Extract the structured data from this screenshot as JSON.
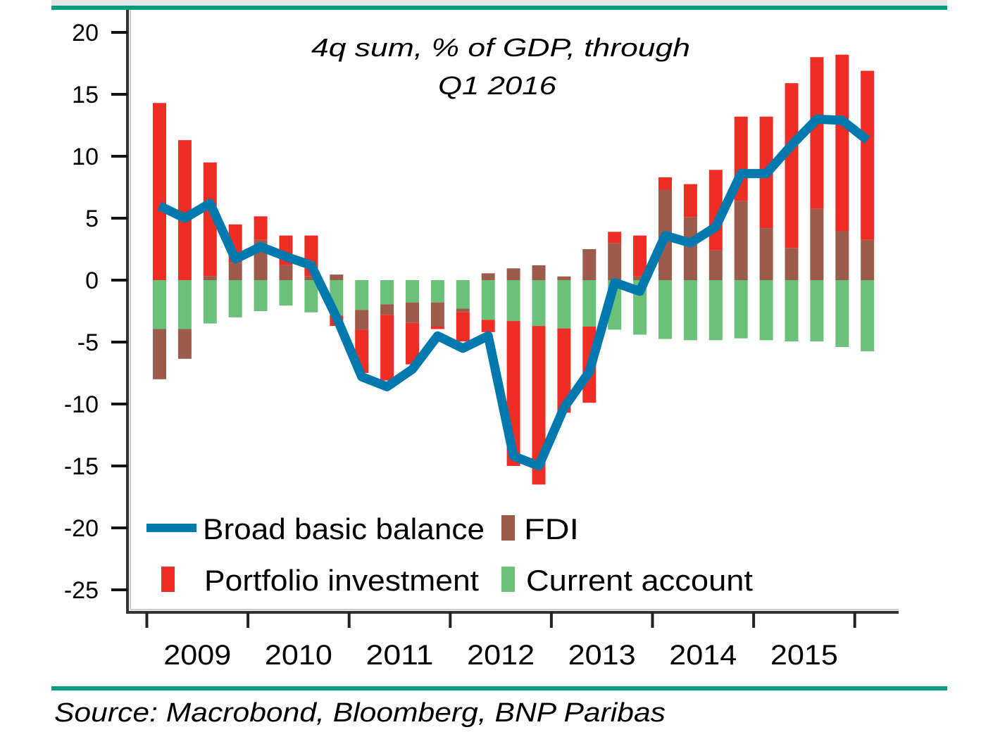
{
  "frame": {
    "top_band_color": "#E3E7EA",
    "rule_color": "#009E7E"
  },
  "source": "Source: Macrobond, Bloomberg, BNP Paribas",
  "chart_data": {
    "type": "bar",
    "subtype": "stacked bar with line overlay",
    "title": "4q sum, % of GDP, through",
    "title_line2": "Q1 2016",
    "xlabel": "",
    "ylabel": "",
    "ylim": [
      -25,
      20
    ],
    "yticks": [
      20,
      15,
      10,
      5,
      0,
      -5,
      -10,
      -15,
      -20,
      -25
    ],
    "ytick_labels": [
      "20",
      "15",
      "10",
      "5",
      "0",
      "-5",
      "-10",
      "-15",
      "-20",
      "-25"
    ],
    "xtick_labels": [
      "2009",
      "2010",
      "2011",
      "2012",
      "2013",
      "2014",
      "2015"
    ],
    "grid": false,
    "legend_position": "bottom-left (inside plot)",
    "categories": [
      "Q1 2009",
      "Q2 2009",
      "Q3 2009",
      "Q4 2009",
      "Q1 2010",
      "Q2 2010",
      "Q3 2010",
      "Q4 2010",
      "Q1 2011",
      "Q2 2011",
      "Q3 2011",
      "Q4 2011",
      "Q1 2012",
      "Q2 2012",
      "Q3 2012",
      "Q4 2012",
      "Q1 2013",
      "Q2 2013",
      "Q3 2013",
      "Q4 2013",
      "Q1 2014",
      "Q2 2014",
      "Q3 2014",
      "Q4 2014",
      "Q1 2015",
      "Q2 2015",
      "Q3 2015",
      "Q4 2015",
      "Q1 2016"
    ],
    "series": [
      {
        "name": "Current account",
        "type": "bar",
        "color": "#6CC17A",
        "values": [
          -3.95,
          -3.95,
          -3.5,
          -3.0,
          -2.5,
          -2.05,
          -2.6,
          -2.85,
          -2.4,
          -1.95,
          -1.8,
          -1.8,
          -2.3,
          -3.2,
          -3.3,
          -3.7,
          -3.9,
          -3.75,
          -4.0,
          -4.4,
          -4.75,
          -4.85,
          -4.85,
          -4.7,
          -4.85,
          -4.95,
          -4.95,
          -5.4,
          -5.75
        ]
      },
      {
        "name": "FDI",
        "type": "bar",
        "color": "#9C5B4B",
        "values": [
          -4.05,
          -2.4,
          0.3,
          1.4,
          3.25,
          1.2,
          0.3,
          0.45,
          -1.6,
          -0.85,
          -1.65,
          -1.95,
          -0.3,
          0.55,
          0.95,
          1.2,
          0.3,
          2.5,
          3.0,
          0.3,
          7.3,
          5.1,
          2.4,
          6.4,
          4.2,
          2.6,
          5.75,
          3.95,
          3.25
        ]
      },
      {
        "name": "Portfolio investment",
        "type": "bar",
        "color": "#EE2D24",
        "values": [
          14.3,
          11.3,
          9.2,
          3.1,
          1.9,
          2.4,
          3.3,
          -0.85,
          -3.5,
          -5.3,
          -3.35,
          -0.2,
          -2.35,
          -1.0,
          -11.7,
          -12.8,
          -6.8,
          -6.15,
          0.9,
          3.3,
          1.0,
          2.65,
          6.5,
          6.8,
          9.0,
          13.3,
          12.25,
          14.25,
          13.65
        ]
      },
      {
        "name": "Broad basic balance",
        "type": "line",
        "color": "#0079AF",
        "values": [
          6.0,
          5.0,
          6.2,
          1.7,
          2.7,
          1.9,
          1.2,
          -3.0,
          -7.8,
          -8.6,
          -7.2,
          -4.5,
          -5.5,
          -4.5,
          -14.2,
          -15.0,
          -10.3,
          -7.4,
          -0.2,
          -0.9,
          3.6,
          3.0,
          4.3,
          8.6,
          8.6,
          10.9,
          13.0,
          12.9,
          11.3
        ]
      }
    ],
    "legend": [
      {
        "label": "Broad basic balance",
        "symbol": "line",
        "color": "#0079AF"
      },
      {
        "label": "FDI",
        "symbol": "square",
        "color": "#9C5B4B"
      },
      {
        "label": "Portfolio investment",
        "symbol": "square",
        "color": "#EE2D24"
      },
      {
        "label": "Current account",
        "symbol": "square",
        "color": "#6CC17A"
      }
    ]
  }
}
